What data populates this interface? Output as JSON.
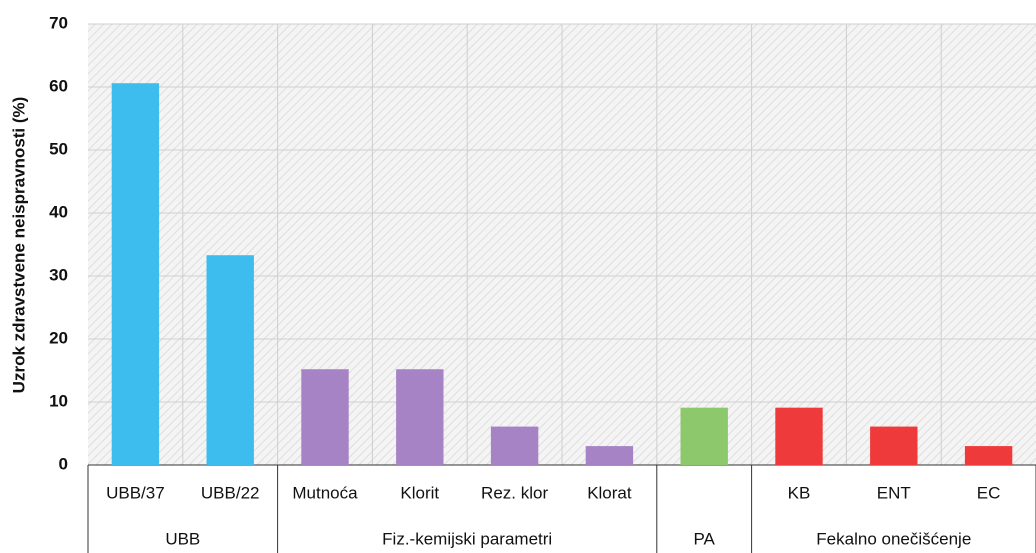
{
  "chart_data": {
    "type": "bar",
    "ylabel": "Uzrok zdravstvene neispravnosti (%)",
    "ylim": [
      0,
      70
    ],
    "yticks": [
      0,
      10,
      20,
      30,
      40,
      50,
      60,
      70
    ],
    "grid": true,
    "series": [
      {
        "name": "UBB",
        "color": "#3dbdee",
        "categories": [
          "UBB/37",
          "UBB/22"
        ],
        "values": [
          60.6,
          33.3
        ]
      },
      {
        "name": "Fiz.-kemijski parametri",
        "color": "#a583c4",
        "categories": [
          "Mutnoća",
          "Klorit",
          "Rez. klor",
          "Klorat"
        ],
        "values": [
          15.2,
          15.2,
          6.1,
          3.0
        ]
      },
      {
        "name": "PA",
        "color": "#8dc96c",
        "categories": [
          null
        ],
        "values": [
          9.1
        ]
      },
      {
        "name": "Fekalno onečišćenje",
        "color": "#ee3a3a",
        "categories": [
          "KB",
          "ENT",
          "EC"
        ],
        "values": [
          9.1,
          6.1,
          3.0
        ]
      }
    ]
  }
}
